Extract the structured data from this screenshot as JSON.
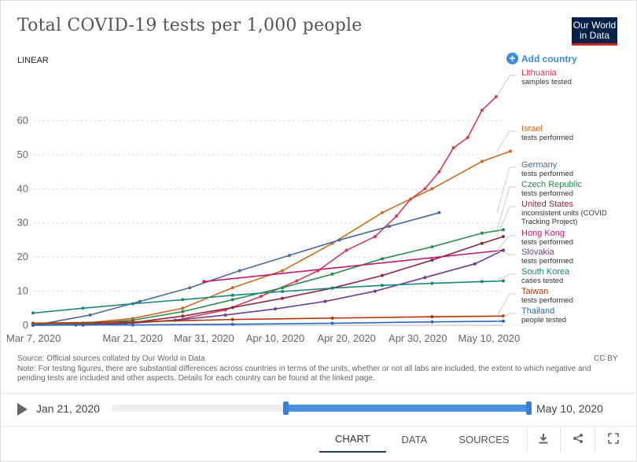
{
  "header": {
    "title": "Total COVID-19 tests per 1,000 people",
    "logo_line1": "Our World",
    "logo_line2": "in Data",
    "scale_label": "LINEAR",
    "add_country_label": "Add country",
    "add_country_icon": "plus-circle-icon"
  },
  "chart_data": {
    "type": "line",
    "title": "Total COVID-19 tests per 1,000 people",
    "xlabel": "",
    "ylabel": "",
    "x_tick_labels": [
      "Mar 7, 2020",
      "Mar 21, 2020",
      "Mar 31, 2020",
      "Apr 10, 2020",
      "Apr 20, 2020",
      "Apr 30, 2020",
      "May 10, 2020"
    ],
    "y_ticks": [
      0,
      10,
      20,
      30,
      40,
      50,
      60
    ],
    "ylim": [
      0,
      70
    ],
    "xlim": [
      "2020-03-07",
      "2020-05-12"
    ],
    "grid": "horizontal dashed",
    "legend_placement": "right (line end labels)",
    "series": [
      {
        "name": "Lithuania",
        "note": "samples tested",
        "color": "#d03d55",
        "points": [
          [
            "2020-03-13",
            0.3
          ],
          [
            "2020-03-20",
            0.6
          ],
          [
            "2020-03-27",
            1.5
          ],
          [
            "2020-04-03",
            4.5
          ],
          [
            "2020-04-08",
            8.5
          ],
          [
            "2020-04-13",
            13
          ],
          [
            "2020-04-16",
            16
          ],
          [
            "2020-04-20",
            22
          ],
          [
            "2020-04-24",
            26
          ],
          [
            "2020-04-27",
            32
          ],
          [
            "2020-04-29",
            37
          ],
          [
            "2020-05-01",
            40
          ],
          [
            "2020-05-03",
            45
          ],
          [
            "2020-05-05",
            52
          ],
          [
            "2020-05-07",
            55
          ],
          [
            "2020-05-09",
            63
          ],
          [
            "2020-05-11",
            67
          ]
        ]
      },
      {
        "name": "Israel",
        "note": "tests performed",
        "color": "#ca6a21",
        "points": [
          [
            "2020-03-07",
            0.3
          ],
          [
            "2020-03-14",
            0.6
          ],
          [
            "2020-03-21",
            2
          ],
          [
            "2020-03-28",
            5
          ],
          [
            "2020-04-04",
            11
          ],
          [
            "2020-04-11",
            16
          ],
          [
            "2020-04-18",
            24
          ],
          [
            "2020-04-25",
            33
          ],
          [
            "2020-05-02",
            40
          ],
          [
            "2020-05-09",
            48
          ],
          [
            "2020-05-13",
            51
          ]
        ]
      },
      {
        "name": "Germany",
        "note": "tests performed",
        "color": "#4c6a9c",
        "points": [
          [
            "2020-03-08",
            0.3
          ],
          [
            "2020-03-15",
            3
          ],
          [
            "2020-03-22",
            7
          ],
          [
            "2020-03-29",
            11
          ],
          [
            "2020-04-05",
            16
          ],
          [
            "2020-04-12",
            20.5
          ],
          [
            "2020-04-19",
            25
          ],
          [
            "2020-04-26",
            29
          ],
          [
            "2020-05-03",
            33
          ]
        ]
      },
      {
        "name": "Czech Republic",
        "note": "tests performed",
        "color": "#2c8a4c",
        "points": [
          [
            "2020-03-07",
            0.1
          ],
          [
            "2020-03-14",
            0.4
          ],
          [
            "2020-03-21",
            1.5
          ],
          [
            "2020-03-28",
            4
          ],
          [
            "2020-04-04",
            7.5
          ],
          [
            "2020-04-11",
            11
          ],
          [
            "2020-04-18",
            15
          ],
          [
            "2020-04-25",
            19.5
          ],
          [
            "2020-05-02",
            23
          ],
          [
            "2020-05-09",
            27
          ],
          [
            "2020-05-12",
            28
          ]
        ]
      },
      {
        "name": "United States",
        "note": "inconsistent units (COVID Tracking Project)",
        "color": "#8d2a3e",
        "points": [
          [
            "2020-03-07",
            0.01
          ],
          [
            "2020-03-14",
            0.1
          ],
          [
            "2020-03-21",
            0.8
          ],
          [
            "2020-03-28",
            2.7
          ],
          [
            "2020-04-04",
            5.2
          ],
          [
            "2020-04-11",
            7.9
          ],
          [
            "2020-04-18",
            10.9
          ],
          [
            "2020-04-25",
            14.6
          ],
          [
            "2020-05-02",
            19.1
          ],
          [
            "2020-05-09",
            24
          ],
          [
            "2020-05-12",
            26
          ]
        ]
      },
      {
        "name": "Hong Kong",
        "note": "tests performed",
        "color": "#c5176e",
        "points": [
          [
            "2020-03-31",
            12.8
          ],
          [
            "2020-05-12",
            22
          ]
        ]
      },
      {
        "name": "Slovakia",
        "note": "tests performed",
        "color": "#6d3e91",
        "points": [
          [
            "2020-03-13",
            0.1
          ],
          [
            "2020-03-20",
            0.5
          ],
          [
            "2020-03-27",
            1.5
          ],
          [
            "2020-04-03",
            3
          ],
          [
            "2020-04-10",
            4.8
          ],
          [
            "2020-04-17",
            7
          ],
          [
            "2020-04-24",
            10
          ],
          [
            "2020-05-01",
            14
          ],
          [
            "2020-05-08",
            18
          ],
          [
            "2020-05-12",
            22
          ]
        ]
      },
      {
        "name": "South Korea",
        "note": "cases tested",
        "color": "#19867e",
        "points": [
          [
            "2020-03-07",
            3.6
          ],
          [
            "2020-03-14",
            5
          ],
          [
            "2020-03-21",
            6.3
          ],
          [
            "2020-03-28",
            7.5
          ],
          [
            "2020-04-04",
            8.8
          ],
          [
            "2020-04-11",
            9.9
          ],
          [
            "2020-04-18",
            10.9
          ],
          [
            "2020-04-25",
            11.7
          ],
          [
            "2020-05-02",
            12.3
          ],
          [
            "2020-05-09",
            12.8
          ],
          [
            "2020-05-12",
            13
          ]
        ]
      },
      {
        "name": "Taiwan",
        "note": "tests performed",
        "color": "#b13507",
        "points": [
          [
            "2020-03-07",
            0.6
          ],
          [
            "2020-03-21",
            1
          ],
          [
            "2020-04-04",
            1.7
          ],
          [
            "2020-04-18",
            2.1
          ],
          [
            "2020-05-02",
            2.5
          ],
          [
            "2020-05-12",
            2.7
          ]
        ]
      },
      {
        "name": "Thailand",
        "note": "people tested",
        "color": "#286bbb",
        "points": [
          [
            "2020-03-07",
            0.05
          ],
          [
            "2020-03-21",
            0.1
          ],
          [
            "2020-04-04",
            0.3
          ],
          [
            "2020-04-18",
            0.6
          ],
          [
            "2020-05-02",
            1
          ],
          [
            "2020-05-12",
            1.2
          ]
        ]
      }
    ]
  },
  "footer": {
    "source": "Source: Official sources collated by Our World in Data",
    "note": "Note: For testing figures, there are substantial differences across countries in terms of the units, whether or not all labs are included, the extent to which negative and pending tests are included and other aspects. Details for each country can be found at the linked page.",
    "license": "CC BY"
  },
  "timeline": {
    "start_label": "Jan 21, 2020",
    "end_label": "May 10, 2020",
    "play_icon": "play-icon"
  },
  "tabs": [
    {
      "label": "CHART",
      "active": true
    },
    {
      "label": "DATA",
      "active": false
    },
    {
      "label": "SOURCES",
      "active": false
    }
  ],
  "actions": {
    "download_icon": "download-icon",
    "share_icon": "share-icon",
    "fullscreen_icon": "fullscreen-icon"
  },
  "colors": {
    "accent": "#3b8be2",
    "logo_bg": "#002147",
    "logo_stripe": "#ce261e"
  }
}
